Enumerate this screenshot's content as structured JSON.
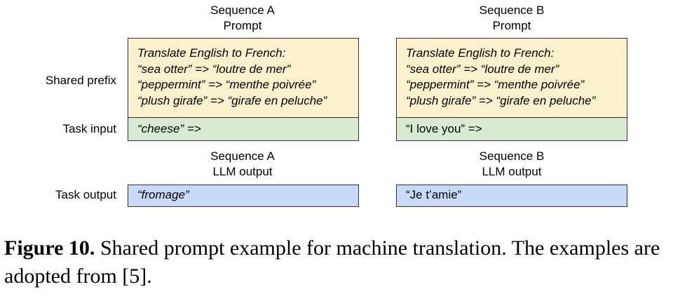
{
  "columns": [
    {
      "prompt_header": [
        "Sequence A",
        "Prompt"
      ],
      "output_header": [
        "Sequence A",
        "LLM output"
      ],
      "prefix_lines": [
        "Translate English to French:",
        "“sea otter” => “loutre de mer”",
        "“peppermint” => “menthe poivrée”",
        "“plush girafe” => “girafe en peluche”"
      ],
      "task_input": "“cheese” =>",
      "task_output": "“fromage”"
    },
    {
      "prompt_header": [
        "Sequence B",
        "Prompt"
      ],
      "output_header": [
        "Sequence B",
        "LLM output"
      ],
      "prefix_lines": [
        "Translate English to French:",
        "“sea otter” => “loutre de mer”",
        "“peppermint” => “menthe poivrée”",
        "“plush girafe” => “girafe en peluche”"
      ],
      "task_input": "“I love you” =>",
      "task_output": "“Je t’amie”"
    }
  ],
  "row_labels": {
    "shared_prefix": "Shared prefix",
    "task_input": "Task input",
    "task_output": "Task output"
  },
  "caption": {
    "label": "Figure 10.",
    "text": " Shared prompt example for machine translation. The examples are adopted from [5]."
  },
  "colors": {
    "prefix_fill": "#fdf0cc",
    "input_fill": "#d9ead3",
    "output_fill": "#c9daf8"
  }
}
